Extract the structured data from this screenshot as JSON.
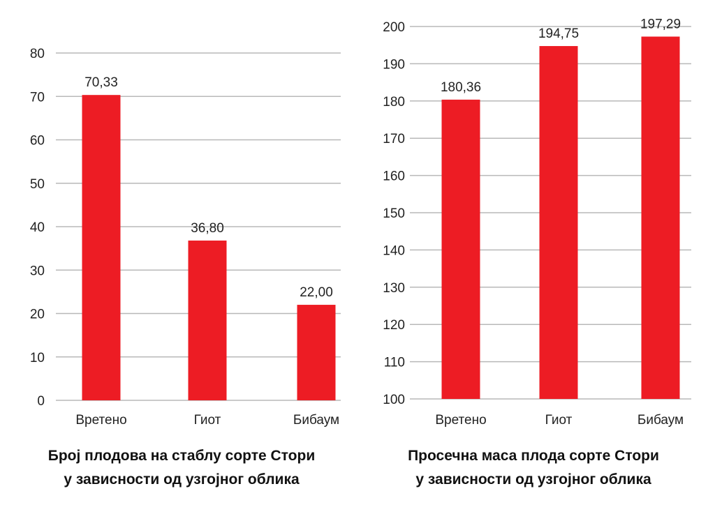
{
  "chart_data": [
    {
      "type": "bar",
      "categories": [
        "Вретено",
        "Гиот",
        "Бибаум"
      ],
      "values": [
        70.33,
        36.8,
        22.0
      ],
      "data_labels": [
        "70,33",
        "36,80",
        "22,00"
      ],
      "ylim": [
        0,
        80
      ],
      "yticks": [
        "0",
        "10",
        "20",
        "30",
        "40",
        "50",
        "60",
        "70",
        "80"
      ],
      "title_lines": [
        "Број плодова на стаблу сорте Стори",
        "у зависности од узгојног облика"
      ],
      "xlabel": "",
      "ylabel": "",
      "grid": true,
      "bar_color": "#ed1c24"
    },
    {
      "type": "bar",
      "categories": [
        "Вретено",
        "Гиот",
        "Бибаум"
      ],
      "values": [
        180.36,
        194.75,
        197.29
      ],
      "data_labels": [
        "180,36",
        "194,75",
        "197,29"
      ],
      "ylim": [
        100,
        200
      ],
      "yticks": [
        "100",
        "110",
        "120",
        "130",
        "140",
        "150",
        "160",
        "170",
        "180",
        "190",
        "200"
      ],
      "title_lines": [
        "Просечна маса плода сорте Стори",
        "у зависности од узгојног облика"
      ],
      "xlabel": "",
      "ylabel": "",
      "grid": true,
      "bar_color": "#ed1c24"
    }
  ]
}
